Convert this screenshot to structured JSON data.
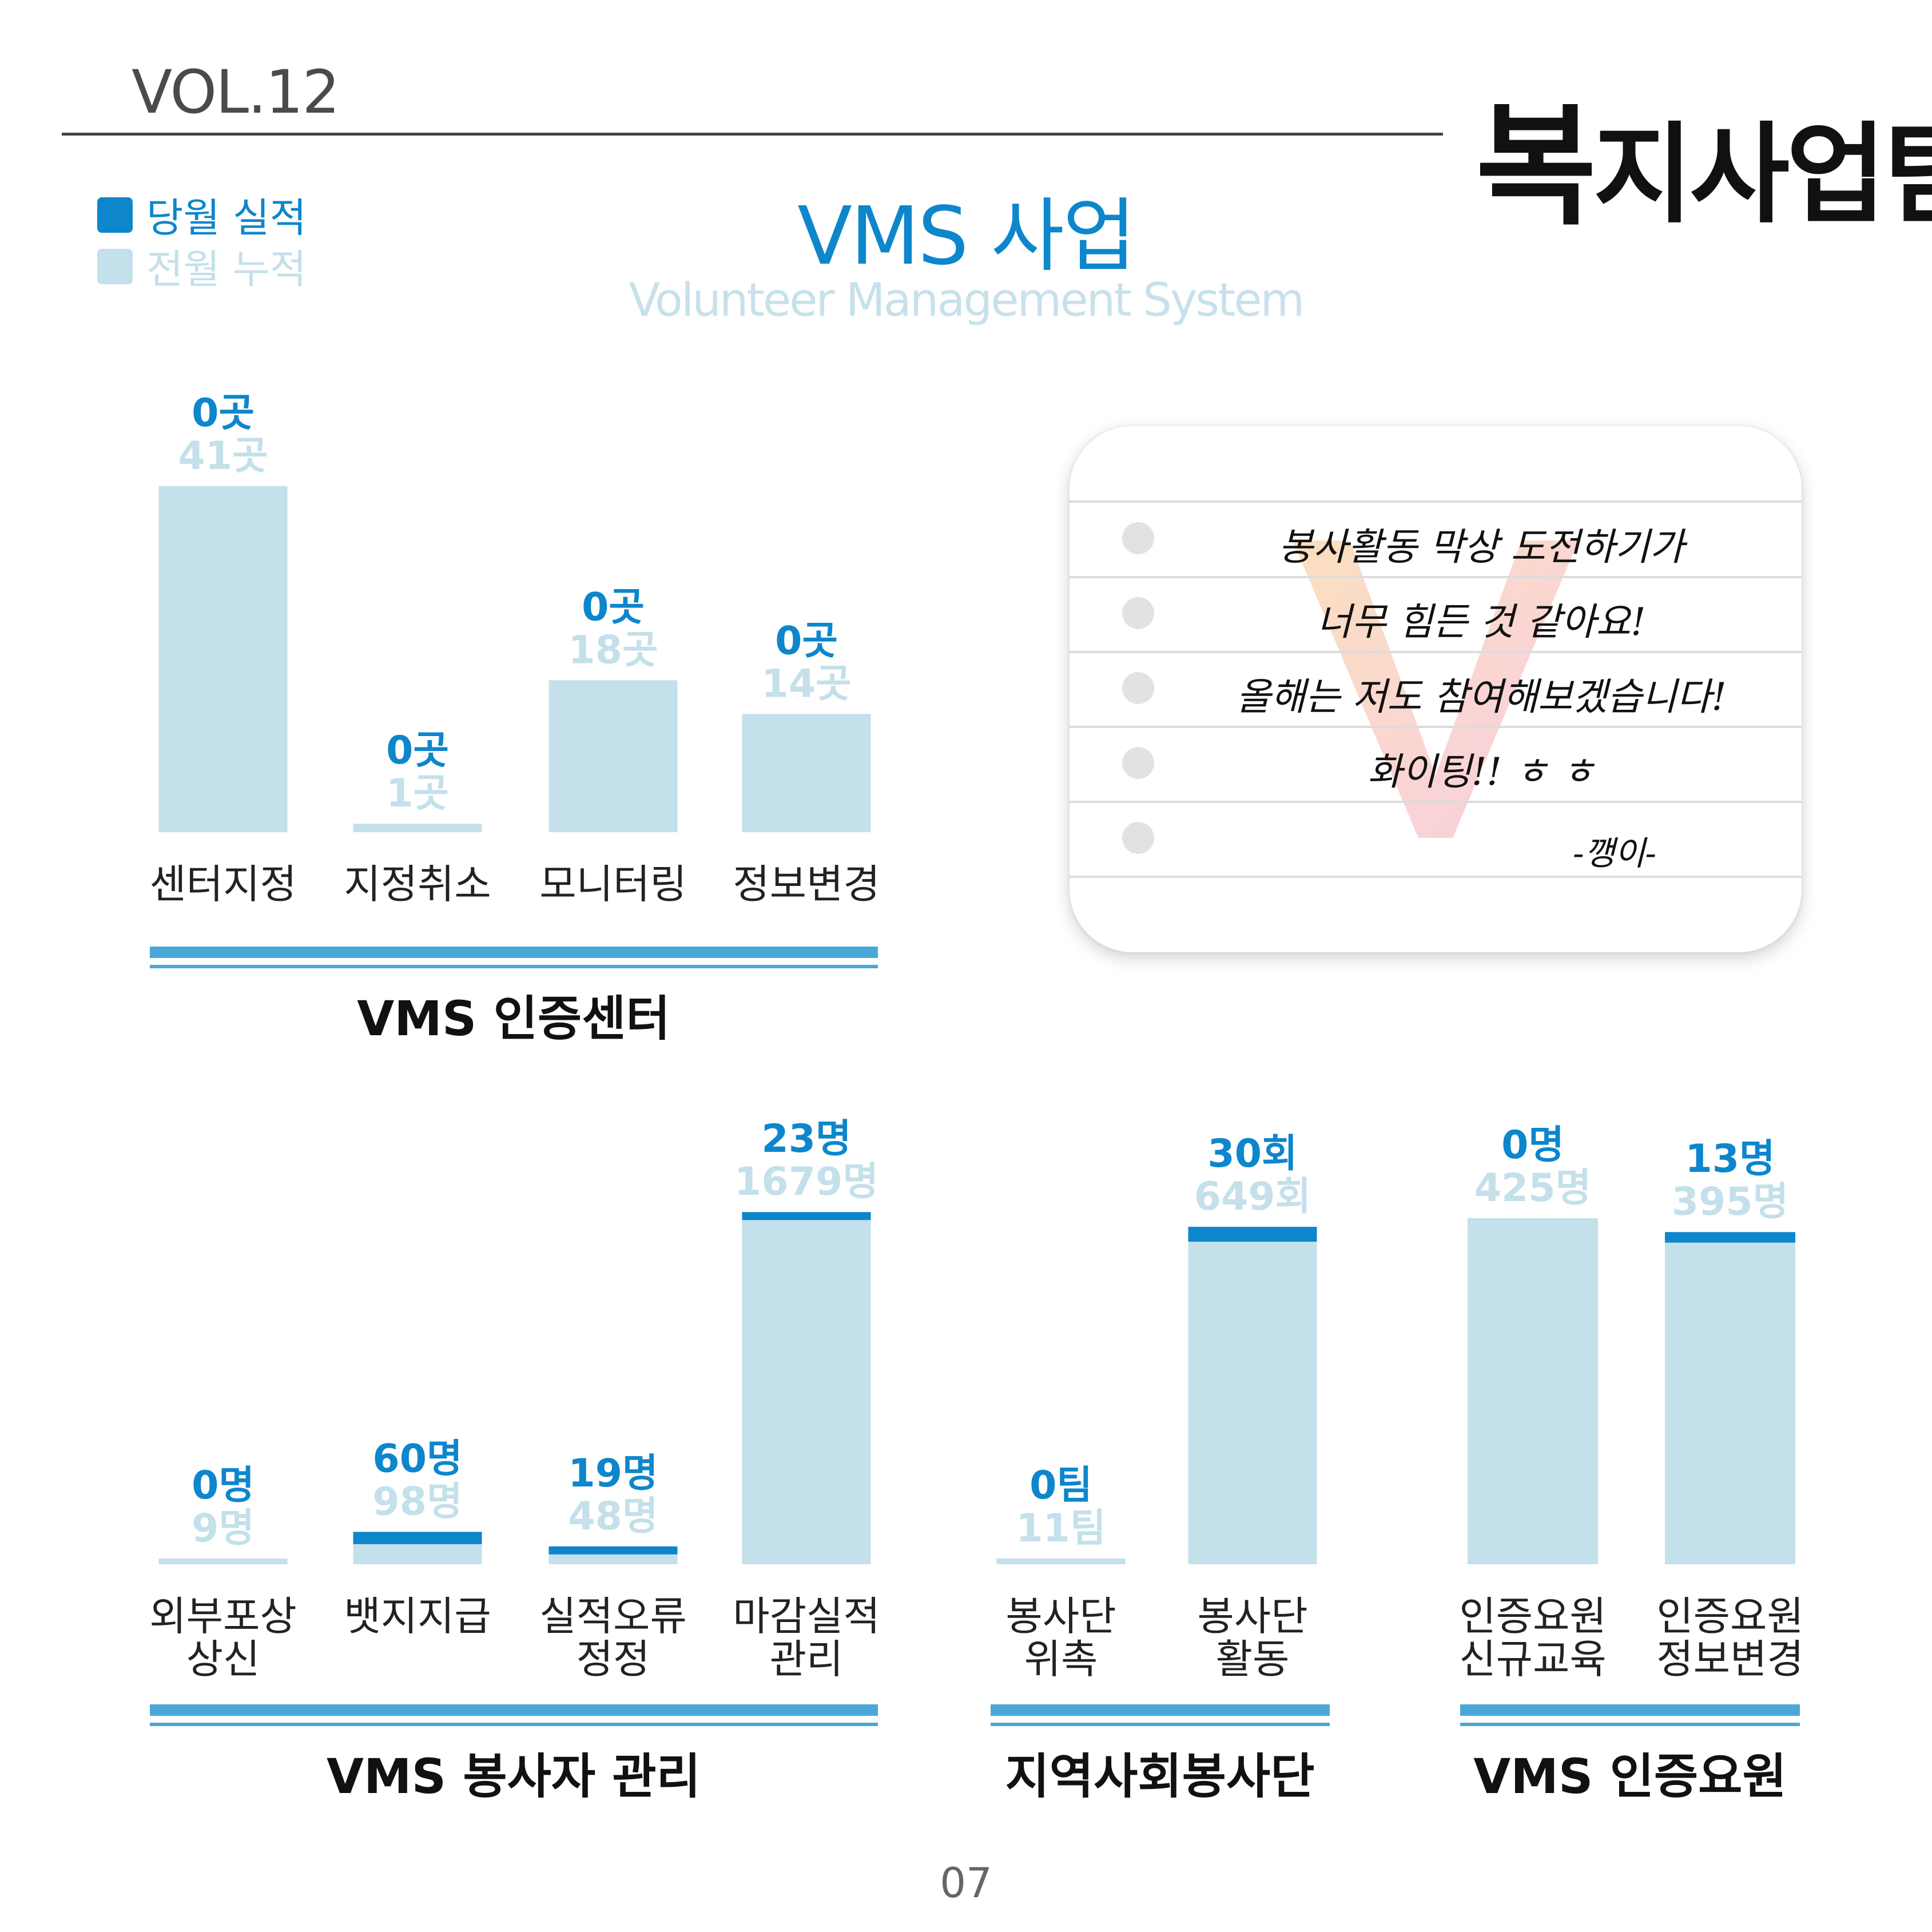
{
  "header": {
    "volume": "VOL.12",
    "team_first": "복",
    "team_rest": "지사업팀"
  },
  "legend": [
    {
      "label": "당월 실적",
      "color": "#0d86cc"
    },
    {
      "label": "전월 누적",
      "color": "#c4e0ea"
    }
  ],
  "title": "VMS 사업",
  "subtitle": "Volunteer Management System",
  "chart_data": [
    {
      "type": "bar",
      "title": "VMS 인증센터",
      "categories": [
        "센터지정",
        "지정취소",
        "모니터링",
        "정보변경"
      ],
      "series": [
        {
          "name": "당월 실적",
          "values": [
            0,
            0,
            0,
            0
          ],
          "labels": [
            "0곳",
            "0곳",
            "0곳",
            "0곳"
          ]
        },
        {
          "name": "전월 누적",
          "values": [
            41,
            1,
            18,
            14
          ],
          "labels": [
            "41곳",
            "1곳",
            "18곳",
            "14곳"
          ]
        }
      ],
      "stacked": true
    },
    {
      "type": "bar",
      "title": "VMS 봉사자 관리",
      "categories": [
        "외부포상\n상신",
        "뱃지지급",
        "실적오류\n정정",
        "마감실적\n관리"
      ],
      "series": [
        {
          "name": "당월 실적",
          "values": [
            0,
            60,
            19,
            23
          ],
          "labels": [
            "0명",
            "60명",
            "19명",
            "23명"
          ]
        },
        {
          "name": "전월 누적",
          "values": [
            9,
            98,
            48,
            1679
          ],
          "labels": [
            "9명",
            "98명",
            "48명",
            "1679명"
          ]
        }
      ],
      "stacked": true
    },
    {
      "type": "bar",
      "title": "지역사회봉사단",
      "categories": [
        "봉사단\n위촉",
        "봉사단\n활동"
      ],
      "series": [
        {
          "name": "당월 실적",
          "values": [
            0,
            30
          ],
          "labels": [
            "0팀",
            "30회"
          ]
        },
        {
          "name": "전월 누적",
          "values": [
            11,
            649
          ],
          "labels": [
            "11팀",
            "649회"
          ]
        }
      ],
      "stacked": true
    },
    {
      "type": "bar",
      "title": "VMS 인증요원",
      "categories": [
        "인증요원\n신규교육",
        "인증요원\n정보변경"
      ],
      "series": [
        {
          "name": "당월 실적",
          "values": [
            0,
            13
          ],
          "labels": [
            "0명",
            "13명"
          ]
        },
        {
          "name": "전월 누적",
          "values": [
            425,
            395
          ],
          "labels": [
            "425명",
            "395명"
          ]
        }
      ],
      "stacked": true
    }
  ],
  "note": {
    "lines": [
      "봉사활동 막상 도전하기가",
      "너무 힘든 것 같아요!",
      "올해는 저도 참여해보겠습니다!",
      "화이팅!! ㅎ ㅎ"
    ],
    "signature": "-깽이-"
  },
  "page_number": "07"
}
